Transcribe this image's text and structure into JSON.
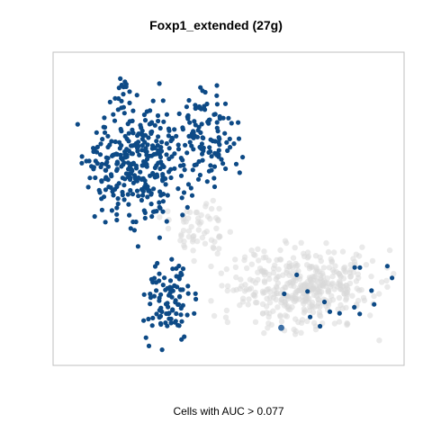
{
  "title": "Foxp1_extended (27g)",
  "caption": "Cells with AUC > 0.077",
  "chart_data": {
    "type": "scatter",
    "title": "Foxp1_extended (27g)",
    "xlabel": "Cells with AUC > 0.077",
    "ylabel": "",
    "axes_visible": false,
    "grid": false,
    "legend": "none",
    "threshold": 0.077,
    "colors": {
      "selected": "#0d4a86",
      "unselected": "#d9d9d9",
      "highlight": "#3c6fa5",
      "frame": "#bfbfbf"
    },
    "series": [
      {
        "name": "AUC > 0.077",
        "regions": [
          {
            "id": "upper-left-mass",
            "x": [
              0.06,
              0.42
            ],
            "y": [
              0.38,
              0.93
            ],
            "n": 340
          },
          {
            "id": "upper-right-lobe",
            "x": [
              0.33,
              0.54
            ],
            "y": [
              0.55,
              0.93
            ],
            "n": 110
          },
          {
            "id": "lower-tail",
            "x": [
              0.24,
              0.42
            ],
            "y": [
              0.05,
              0.38
            ],
            "n": 95
          },
          {
            "id": "scattered-right",
            "x": [
              0.55,
              0.97
            ],
            "y": [
              0.08,
              0.38
            ],
            "n": 16
          }
        ]
      },
      {
        "name": "AUC <= 0.077",
        "regions": [
          {
            "id": "lower-right-cluster",
            "x": [
              0.45,
              0.97
            ],
            "y": [
              0.08,
              0.42
            ],
            "n": 430
          },
          {
            "id": "mid-band",
            "x": [
              0.28,
              0.55
            ],
            "y": [
              0.32,
              0.55
            ],
            "n": 60
          }
        ]
      }
    ]
  }
}
